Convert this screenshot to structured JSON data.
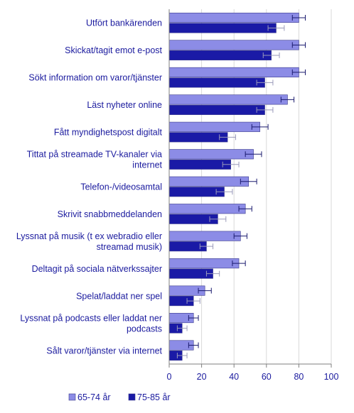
{
  "chart_data": {
    "type": "bar",
    "orientation": "horizontal",
    "categories": [
      "Utfört bankärenden",
      "Skickat/tagit emot e-post",
      "Sökt information om varor/tjänster",
      "Läst nyheter online",
      "Fått myndighetspost digitalt",
      "Tittat på streamade TV-kanaler via internet",
      "Telefon-/videosamtal",
      "Skrivit snabbmeddelanden",
      "Lyssnat på musik (t ex webradio eller streamad musik)",
      "Deltagit på sociala nätverkssajter",
      "Spelat/laddat ner spel",
      "Lyssnat på podcasts eller laddat ner podcasts",
      "Sålt varor/tjänster via internet"
    ],
    "category_lines": [
      [
        "Utfört bankärenden"
      ],
      [
        "Skickat/tagit emot e-post"
      ],
      [
        "Sökt information om varor/tjänster"
      ],
      [
        "Läst nyheter online"
      ],
      [
        "Fått myndighetspost digitalt"
      ],
      [
        "Tittat på streamade TV-kanaler via",
        "internet"
      ],
      [
        "Telefon-/videosamtal"
      ],
      [
        "Skrivit snabbmeddelanden"
      ],
      [
        "Lyssnat på musik (t ex webradio eller",
        "streamad musik)"
      ],
      [
        "Deltagit på sociala nätverkssajter"
      ],
      [
        "Spelat/laddat ner spel"
      ],
      [
        "Lyssnat på podcasts eller laddat ner",
        "podcasts"
      ],
      [
        "Sålt varor/tjänster via internet"
      ]
    ],
    "series": [
      {
        "name": "65-74 år",
        "color": "#8c8ce6",
        "values": [
          80,
          80,
          80,
          73,
          56,
          52,
          49,
          47,
          44,
          43,
          22,
          15,
          15
        ],
        "error": [
          4,
          4,
          4,
          4,
          5,
          5,
          5,
          4,
          4,
          4,
          4,
          3,
          3
        ]
      },
      {
        "name": "75-85 år",
        "color": "#1a1aa6",
        "values": [
          66,
          63,
          59,
          59,
          36,
          38,
          34,
          30,
          23,
          27,
          15,
          8,
          8
        ],
        "error": [
          5,
          5,
          5,
          5,
          5,
          5,
          5,
          5,
          4,
          4,
          4,
          3,
          3
        ]
      }
    ],
    "xlim": [
      0,
      100
    ],
    "xticks": [
      "0",
      "20",
      "40",
      "60",
      "80",
      "100"
    ],
    "grid": true,
    "legend_position": "bottom-left"
  }
}
